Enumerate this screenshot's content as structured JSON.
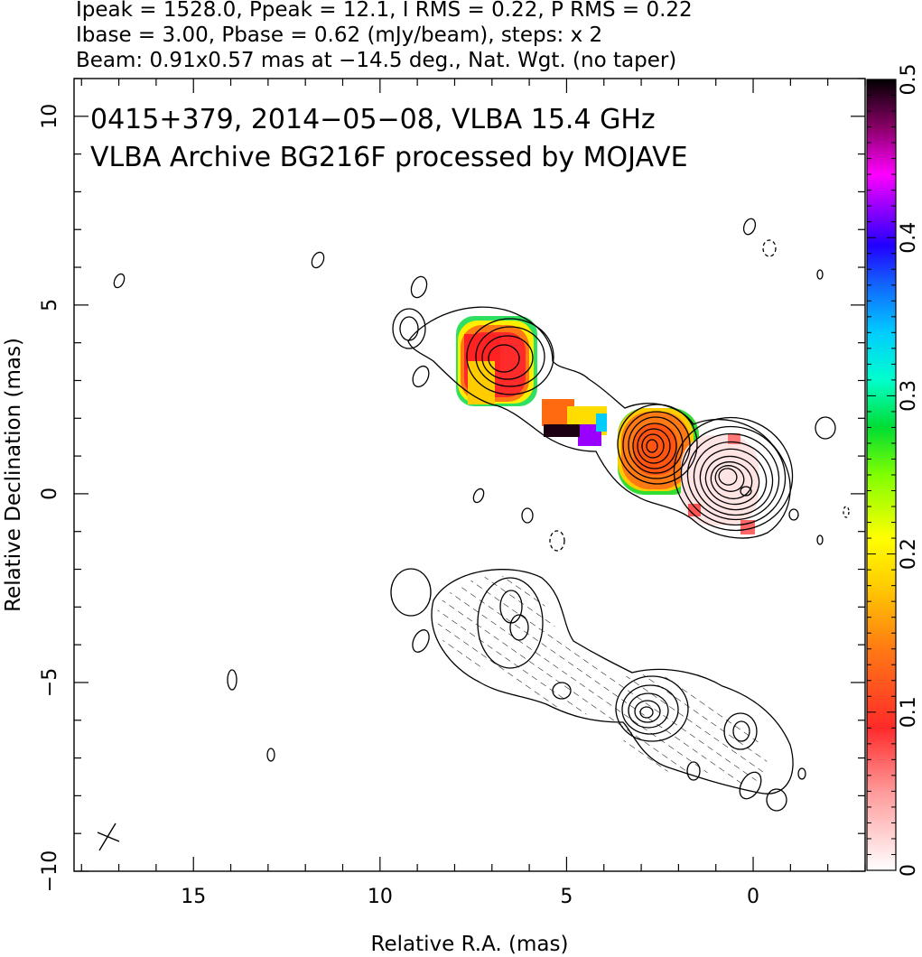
{
  "chart_data": {
    "type": "heatmap",
    "header_lines": [
      "Ipeak = 1528.0, Ppeak = 12.1, I RMS = 0.22, P RMS = 0.22",
      "Ibase = 3.00, Pbase = 0.62 (mJy/beam), steps: x 2",
      "Beam: 0.91x0.57 mas at −14.5 deg., Nat. Wgt. (no taper)"
    ],
    "annotations": [
      "0415+379, 2014−05−08, VLBA 15.4 GHz",
      "VLBA Archive BG216F processed by MOJAVE"
    ],
    "xlabel": "Relative R.A. (mas)",
    "ylabel": "Relative Declination (mas)",
    "xlim": [
      18.2,
      -3
    ],
    "ylim": [
      -10,
      11
    ],
    "xticks": [
      15,
      10,
      5,
      0
    ],
    "yticks": [
      10,
      5,
      0,
      -5,
      -10
    ],
    "colorbar": {
      "range": [
        0,
        0.5
      ],
      "ticks": [
        "0",
        "0.1",
        "0.2",
        "0.3",
        "0.4",
        "0.5"
      ],
      "tick_values": [
        0,
        0.1,
        0.2,
        0.3,
        0.4,
        0.5
      ]
    },
    "beam": {
      "major_mas": 0.91,
      "minor_mas": 0.57,
      "pa_deg": -14.5
    },
    "upper_components": [
      {
        "ra": 6.6,
        "dec": 3.6,
        "flux_levels": 4
      },
      {
        "ra": 2.8,
        "dec": 1.3,
        "flux_levels": 7
      },
      {
        "ra": 0.9,
        "dec": 0.6,
        "flux_levels": 10
      }
    ],
    "lower_components": [
      {
        "ra": 6.6,
        "dec": -3.6,
        "flux_levels": 2
      },
      {
        "ra": 2.8,
        "dec": -5.8,
        "flux_levels": 6
      },
      {
        "ra": 0.9,
        "dec": -6.3,
        "flux_levels": 2
      }
    ]
  }
}
